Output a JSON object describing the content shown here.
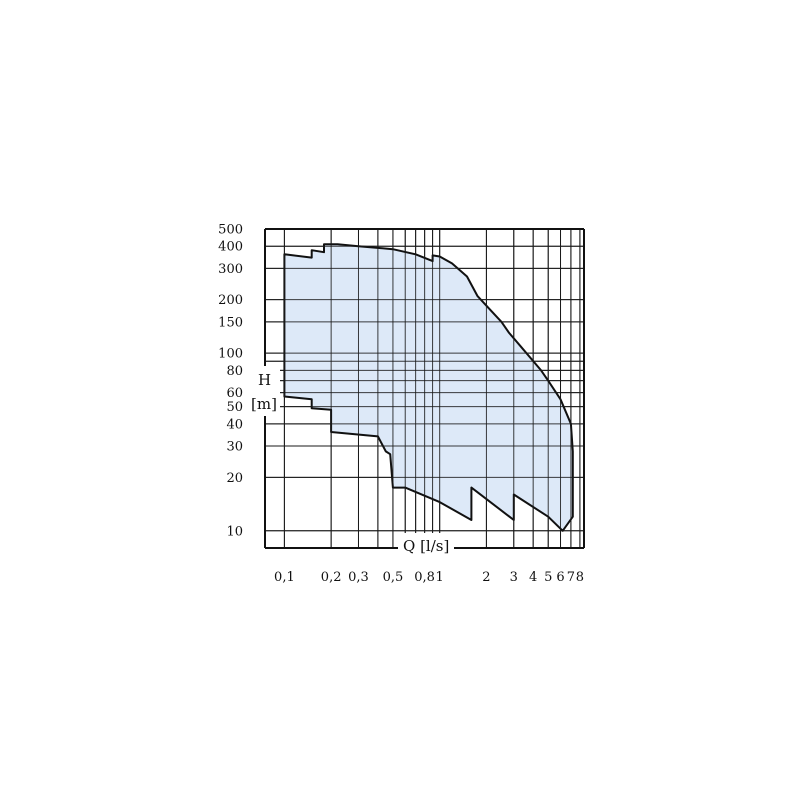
{
  "chart_data": {
    "type": "area",
    "title": "",
    "xlabel": "Q [l/s]",
    "ylabel_line1": "H",
    "ylabel_line2": "[m]",
    "x_scale": "log",
    "y_scale": "log",
    "xlim": [
      0.075,
      8.5
    ],
    "ylim": [
      8,
      500
    ],
    "grid": true,
    "x_ticks": [
      {
        "value": 0.1,
        "label": "0,1"
      },
      {
        "value": 0.2,
        "label": "0,2"
      },
      {
        "value": 0.3,
        "label": "0,3"
      },
      {
        "value": 0.5,
        "label": "0,5"
      },
      {
        "value": 0.8,
        "label": "0,8"
      },
      {
        "value": 1,
        "label": "1"
      },
      {
        "value": 2,
        "label": "2"
      },
      {
        "value": 3,
        "label": "3"
      },
      {
        "value": 4,
        "label": "4"
      },
      {
        "value": 5,
        "label": "5"
      },
      {
        "value": 6,
        "label": "6"
      },
      {
        "value": 7,
        "label": "7"
      },
      {
        "value": 8,
        "label": "8"
      }
    ],
    "x_grid": [
      0.1,
      0.2,
      0.3,
      0.4,
      0.5,
      0.6,
      0.7,
      0.8,
      0.9,
      1,
      2,
      3,
      4,
      5,
      6,
      7,
      8
    ],
    "y_ticks": [
      {
        "value": 10,
        "label": "10"
      },
      {
        "value": 20,
        "label": "20"
      },
      {
        "value": 30,
        "label": "30"
      },
      {
        "value": 40,
        "label": "40"
      },
      {
        "value": 50,
        "label": "50"
      },
      {
        "value": 60,
        "label": "60"
      },
      {
        "value": 80,
        "label": "80"
      },
      {
        "value": 100,
        "label": "100"
      },
      {
        "value": 150,
        "label": "150"
      },
      {
        "value": 200,
        "label": "200"
      },
      {
        "value": 300,
        "label": "300"
      },
      {
        "value": 400,
        "label": "400"
      },
      {
        "value": 500,
        "label": "500"
      }
    ],
    "y_grid": [
      10,
      20,
      30,
      40,
      50,
      60,
      70,
      80,
      90,
      100,
      150,
      200,
      300,
      400,
      500
    ],
    "envelope": [
      [
        0.1,
        360
      ],
      [
        0.15,
        345
      ],
      [
        0.15,
        380
      ],
      [
        0.18,
        370
      ],
      [
        0.18,
        410
      ],
      [
        0.22,
        410
      ],
      [
        0.3,
        400
      ],
      [
        0.5,
        385
      ],
      [
        0.7,
        360
      ],
      [
        0.9,
        330
      ],
      [
        0.9,
        355
      ],
      [
        1.0,
        350
      ],
      [
        1.2,
        320
      ],
      [
        1.5,
        270
      ],
      [
        1.75,
        210
      ],
      [
        2.0,
        185
      ],
      [
        2.5,
        150
      ],
      [
        2.8,
        130
      ],
      [
        3.3,
        110
      ],
      [
        4.5,
        80
      ],
      [
        5.0,
        70
      ],
      [
        6.0,
        55
      ],
      [
        7.0,
        40
      ],
      [
        7.2,
        28
      ],
      [
        7.2,
        12
      ],
      [
        6.2,
        10
      ],
      [
        5.0,
        12
      ],
      [
        3.0,
        16
      ],
      [
        3.0,
        11.5
      ],
      [
        1.6,
        17.5
      ],
      [
        1.6,
        11.5
      ],
      [
        1.0,
        14.5
      ],
      [
        0.6,
        17.5
      ],
      [
        0.5,
        17.5
      ],
      [
        0.48,
        27
      ],
      [
        0.45,
        28
      ],
      [
        0.4,
        34
      ],
      [
        0.2,
        36
      ],
      [
        0.2,
        48
      ],
      [
        0.15,
        49
      ],
      [
        0.15,
        55
      ],
      [
        0.1,
        57
      ]
    ]
  }
}
